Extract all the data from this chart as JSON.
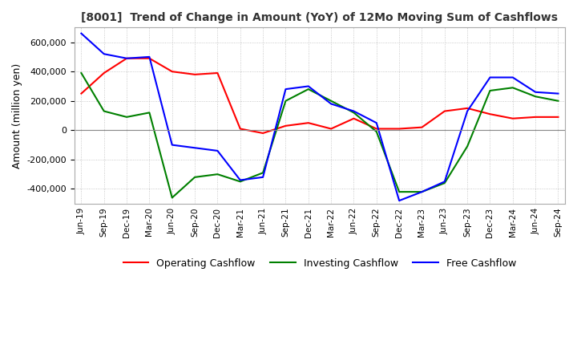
{
  "title": "[8001]  Trend of Change in Amount (YoY) of 12Mo Moving Sum of Cashflows",
  "ylabel": "Amount (million yen)",
  "ylim": [
    -500000,
    700000
  ],
  "yticks": [
    -400000,
    -200000,
    0,
    200000,
    400000,
    600000
  ],
  "background_color": "#ffffff",
  "grid_color": "#aaaaaa",
  "labels": [
    "Jun-19",
    "Sep-19",
    "Dec-19",
    "Mar-20",
    "Jun-20",
    "Sep-20",
    "Dec-20",
    "Mar-21",
    "Jun-21",
    "Sep-21",
    "Dec-21",
    "Mar-22",
    "Jun-22",
    "Sep-22",
    "Dec-22",
    "Mar-23",
    "Jun-23",
    "Sep-23",
    "Dec-23",
    "Mar-24",
    "Jun-24",
    "Sep-24"
  ],
  "operating": [
    250000,
    390000,
    490000,
    490000,
    400000,
    380000,
    390000,
    10000,
    -20000,
    30000,
    50000,
    10000,
    80000,
    10000,
    10000,
    20000,
    130000,
    150000,
    110000,
    80000,
    90000,
    90000
  ],
  "investing": [
    390000,
    130000,
    90000,
    120000,
    -460000,
    -320000,
    -300000,
    -350000,
    -290000,
    200000,
    280000,
    200000,
    120000,
    -10000,
    -420000,
    -420000,
    -360000,
    -110000,
    270000,
    290000,
    230000,
    200000
  ],
  "free": [
    660000,
    520000,
    490000,
    500000,
    -100000,
    -120000,
    -140000,
    -340000,
    -320000,
    280000,
    300000,
    180000,
    130000,
    50000,
    -480000,
    -420000,
    -350000,
    130000,
    360000,
    360000,
    260000,
    250000
  ],
  "op_color": "#ff0000",
  "inv_color": "#008000",
  "free_color": "#0000ff",
  "legend_labels": [
    "Operating Cashflow",
    "Investing Cashflow",
    "Free Cashflow"
  ]
}
